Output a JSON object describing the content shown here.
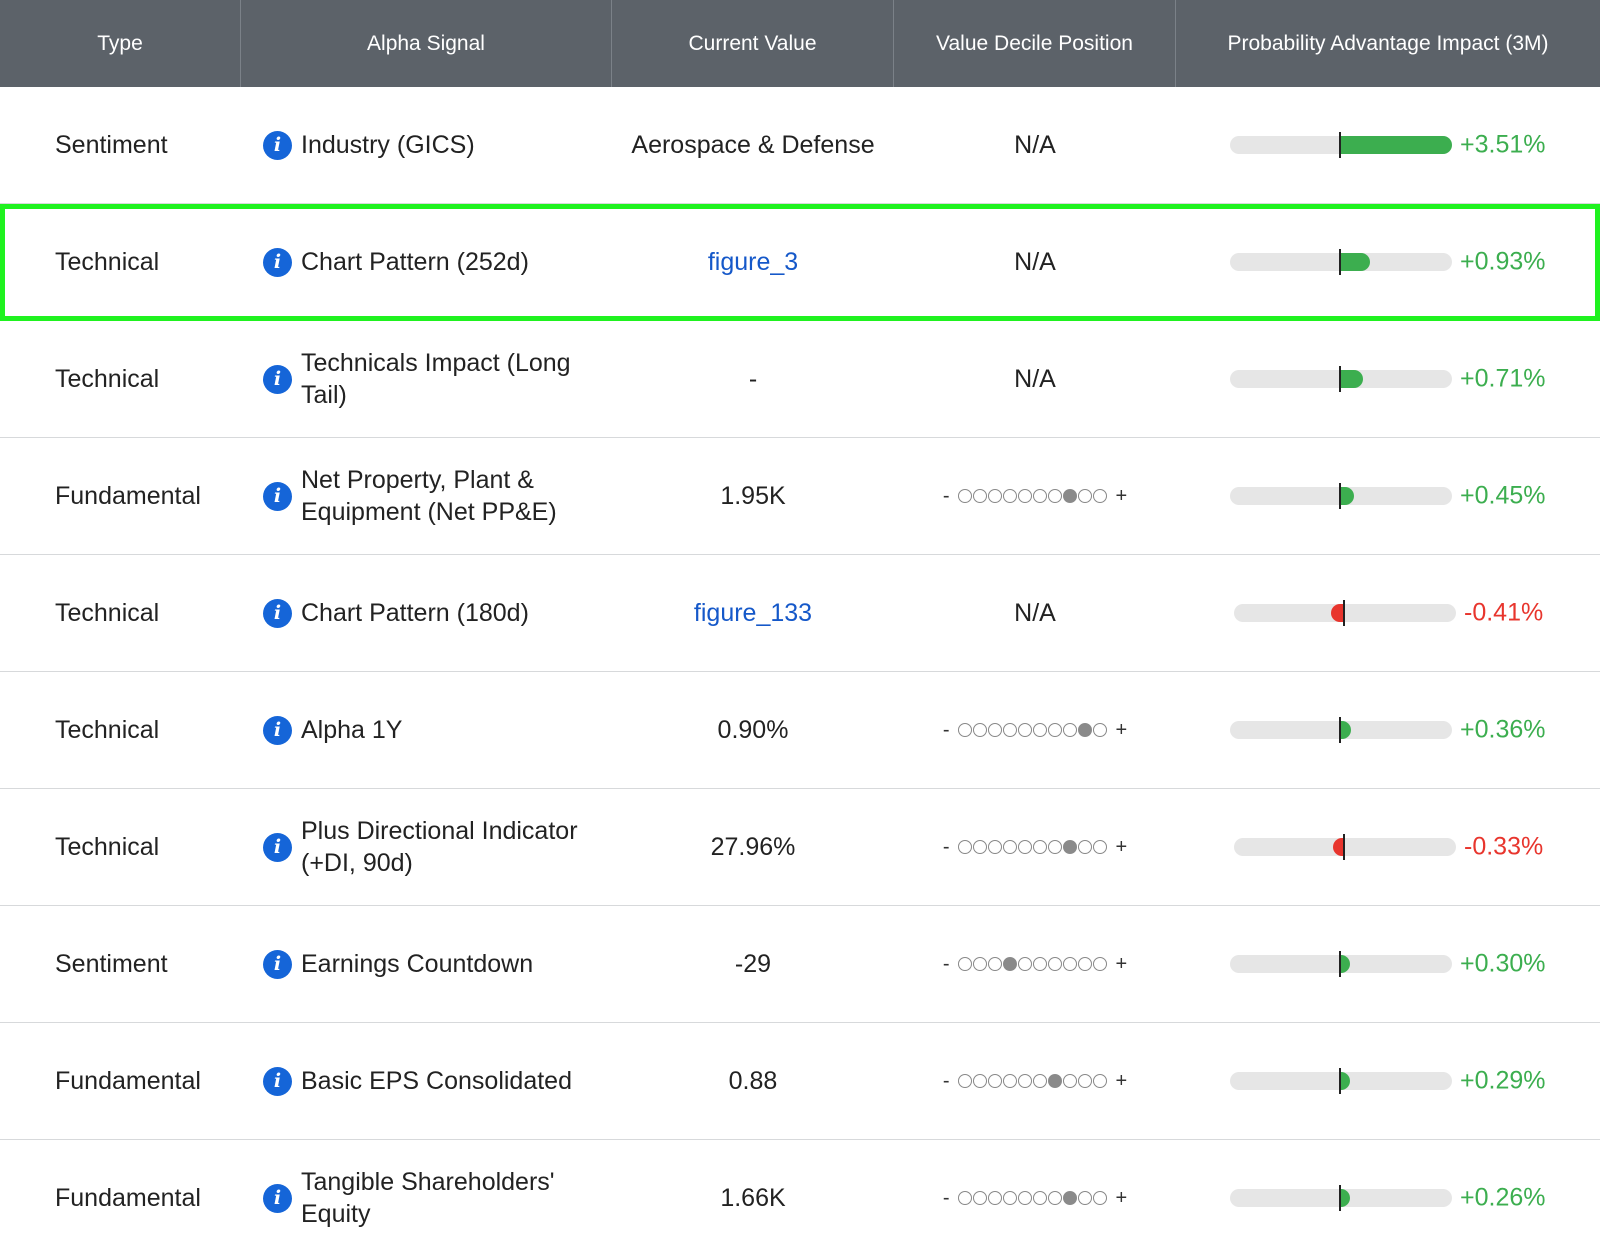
{
  "columns": {
    "type": "Type",
    "signal": "Alpha Signal",
    "value": "Current Value",
    "decile": "Value Decile Position",
    "impact": "Probability Advantage Impact (3M)"
  },
  "colors": {
    "header_bg": "#5c6269",
    "positive": "#3cae4f",
    "negative": "#e8352d",
    "highlight": "#1ff21f",
    "info_icon": "#1565d8"
  },
  "rows": [
    {
      "type": "Sentiment",
      "signal": "Industry (GICS)",
      "value": "Aerospace & Defense",
      "value_is_link": false,
      "decile": "N/A",
      "decile_position": null,
      "impact": "+3.51%",
      "impact_value": 3.51,
      "highlighted": false
    },
    {
      "type": "Technical",
      "signal": "Chart Pattern (252d)",
      "value": "figure_3",
      "value_is_link": true,
      "decile": "N/A",
      "decile_position": null,
      "impact": "+0.93%",
      "impact_value": 0.93,
      "highlighted": true
    },
    {
      "type": "Technical",
      "signal": "Technicals Impact (Long Tail)",
      "value": "-",
      "value_is_link": false,
      "decile": "N/A",
      "decile_position": null,
      "impact": "+0.71%",
      "impact_value": 0.71,
      "highlighted": false
    },
    {
      "type": "Fundamental",
      "signal": "Net Property, Plant & Equipment (Net PP&E)",
      "value": "1.95K",
      "value_is_link": false,
      "decile": "",
      "decile_position": 8,
      "impact": "+0.45%",
      "impact_value": 0.45,
      "highlighted": false
    },
    {
      "type": "Technical",
      "signal": "Chart Pattern (180d)",
      "value": "figure_133",
      "value_is_link": true,
      "decile": "N/A",
      "decile_position": null,
      "impact": "-0.41%",
      "impact_value": -0.41,
      "highlighted": false
    },
    {
      "type": "Technical",
      "signal": "Alpha 1Y",
      "value": "0.90%",
      "value_is_link": false,
      "decile": "",
      "decile_position": 9,
      "impact": "+0.36%",
      "impact_value": 0.36,
      "highlighted": false
    },
    {
      "type": "Technical",
      "signal": "Plus Directional Indicator (+DI, 90d)",
      "value": "27.96%",
      "value_is_link": false,
      "decile": "",
      "decile_position": 8,
      "impact": "-0.33%",
      "impact_value": -0.33,
      "highlighted": false
    },
    {
      "type": "Sentiment",
      "signal": "Earnings Countdown",
      "value": "-29",
      "value_is_link": false,
      "decile": "",
      "decile_position": 4,
      "impact": "+0.30%",
      "impact_value": 0.3,
      "highlighted": false
    },
    {
      "type": "Fundamental",
      "signal": "Basic EPS Consolidated",
      "value": "0.88",
      "value_is_link": false,
      "decile": "",
      "decile_position": 7,
      "impact": "+0.29%",
      "impact_value": 0.29,
      "highlighted": false
    },
    {
      "type": "Fundamental",
      "signal": "Tangible Shareholders' Equity",
      "value": "1.66K",
      "value_is_link": false,
      "decile": "",
      "decile_position": 8,
      "impact": "+0.26%",
      "impact_value": 0.26,
      "highlighted": false
    }
  ],
  "decile": {
    "minus": "-",
    "plus": "+",
    "count": 10
  },
  "impact_scale_max": 3.51
}
